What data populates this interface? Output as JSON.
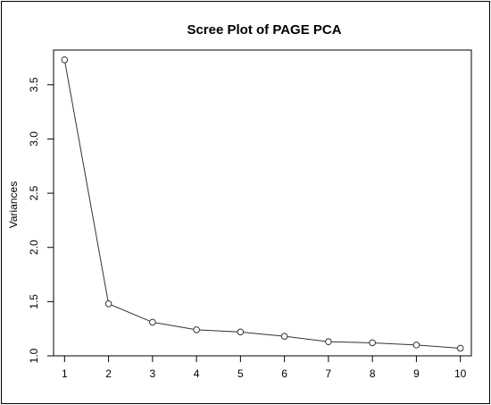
{
  "chart_data": {
    "type": "line",
    "title": "Scree Plot of PAGE PCA",
    "xlabel": "",
    "ylabel": "Variances",
    "x": [
      1,
      2,
      3,
      4,
      5,
      6,
      7,
      8,
      9,
      10
    ],
    "series": [
      {
        "values": [
          3.73,
          1.48,
          1.31,
          1.24,
          1.22,
          1.18,
          1.13,
          1.12,
          1.1,
          1.07
        ]
      }
    ],
    "xticks": [
      "1",
      "2",
      "3",
      "4",
      "5",
      "6",
      "7",
      "8",
      "9",
      "10"
    ],
    "yticks": [
      "1.0",
      "1.5",
      "2.0",
      "2.5",
      "3.0",
      "3.5"
    ],
    "xlim": [
      0.75,
      10.25
    ],
    "ylim": [
      1.0,
      3.82
    ],
    "grid": false,
    "legend": "none",
    "marker": "open-circle",
    "colors": {
      "line": "#333333",
      "marker": "#333333",
      "frame": "#000000",
      "background": "#ffffff"
    }
  }
}
